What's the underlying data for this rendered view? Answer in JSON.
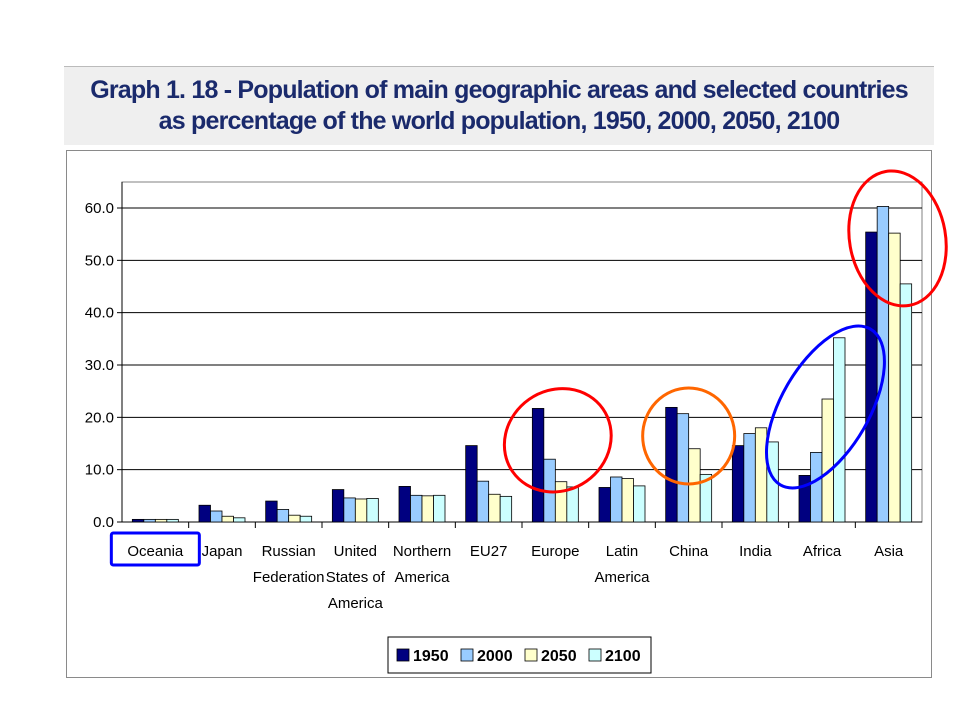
{
  "header": {
    "title_line1": "Graph 1. 18 - Population of main geographic areas and selected countries",
    "title_line2": "as percentage of the world population, 1950, 2000, 2050, 2100"
  },
  "chart_data": {
    "type": "bar",
    "title": "Graph 1. 18 - Population of main geographic areas and selected countries as percentage of the world population, 1950, 2000, 2050, 2100",
    "xlabel": "",
    "ylabel": "",
    "ylim": [
      0,
      65
    ],
    "yticks": [
      0,
      10,
      20,
      30,
      40,
      50,
      60
    ],
    "ytick_labels": [
      "0.0",
      "10.0",
      "20.0",
      "30.0",
      "40.0",
      "50.0",
      "60.0"
    ],
    "grid": true,
    "legend_position": "bottom-right",
    "categories": [
      [
        "Oceania"
      ],
      [
        "Japan"
      ],
      [
        "Russian",
        "Federation"
      ],
      [
        "United",
        "States of",
        "America"
      ],
      [
        "Northern",
        "America"
      ],
      [
        "EU27"
      ],
      [
        "Europe"
      ],
      [
        "Latin",
        "America"
      ],
      [
        "China"
      ],
      [
        "India"
      ],
      [
        "Africa"
      ],
      [
        "Asia"
      ]
    ],
    "series": [
      {
        "name": "1950",
        "color": "#000080",
        "values": [
          0.5,
          3.2,
          4.0,
          6.2,
          6.8,
          14.6,
          21.7,
          6.6,
          21.9,
          14.6,
          8.9,
          55.4
        ]
      },
      {
        "name": "2000",
        "color": "#99ccff",
        "values": [
          0.5,
          2.1,
          2.4,
          4.6,
          5.1,
          7.8,
          12.0,
          8.6,
          20.7,
          16.9,
          13.3,
          60.3
        ]
      },
      {
        "name": "2050",
        "color": "#ffffcc",
        "values": [
          0.5,
          1.1,
          1.3,
          4.4,
          5.0,
          5.3,
          7.7,
          8.3,
          14.0,
          18.0,
          23.5,
          55.2
        ]
      },
      {
        "name": "2100",
        "color": "#ccffff",
        "values": [
          0.5,
          0.8,
          1.1,
          4.5,
          5.1,
          4.9,
          6.7,
          6.9,
          9.1,
          15.3,
          35.2,
          45.5
        ]
      }
    ],
    "annotations": [
      {
        "shape": "rectangle",
        "target": "Oceania",
        "color": "#0000ff"
      },
      {
        "shape": "ellipse",
        "target": "Europe",
        "color": "#ff0000"
      },
      {
        "shape": "ellipse",
        "target": "China",
        "color": "#ff6600"
      },
      {
        "shape": "ellipse",
        "target": "Africa",
        "color": "#0000ff"
      },
      {
        "shape": "ellipse",
        "target": "Asia",
        "color": "#ff0000"
      }
    ]
  }
}
